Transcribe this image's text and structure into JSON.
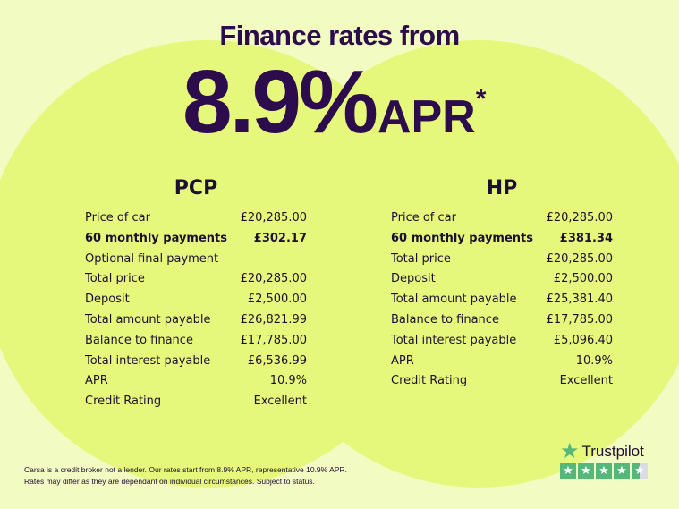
{
  "header": {
    "title": "Finance rates from",
    "rate": "8.9%",
    "rate_suffix": "APR",
    "asterisk": "*"
  },
  "colors": {
    "text": "#2d0c4e",
    "background": "#f1fbc2",
    "circle": "#e6f87c",
    "trustpilot_green": "#54b87a"
  },
  "pcp": {
    "title": "PCP",
    "rows": [
      {
        "label": "Price of car",
        "value": "£20,285.00"
      },
      {
        "label": "60 monthly payments",
        "value": "£302.17",
        "bold": true
      },
      {
        "label": "Optional final payment",
        "value": ""
      },
      {
        "label": "Total price",
        "value": "£20,285.00"
      },
      {
        "label": "Deposit",
        "value": "£2,500.00"
      },
      {
        "label": "Total amount payable",
        "value": "£26,821.99"
      },
      {
        "label": "Balance to finance",
        "value": "£17,785.00"
      },
      {
        "label": "Total interest payable",
        "value": "£6,536.99"
      },
      {
        "label": "APR",
        "value": "10.9%"
      },
      {
        "label": "Credit Rating",
        "value": "Excellent"
      }
    ]
  },
  "hp": {
    "title": "HP",
    "rows": [
      {
        "label": "Price of car",
        "value": "£20,285.00"
      },
      {
        "label": "60 monthly payments",
        "value": "£381.34",
        "bold": true
      },
      {
        "label": "Total price",
        "value": "£20,285.00"
      },
      {
        "label": "Deposit",
        "value": "£2,500.00"
      },
      {
        "label": "Total amount payable",
        "value": "£25,381.40"
      },
      {
        "label": "Balance to finance",
        "value": "£17,785.00"
      },
      {
        "label": "Total interest payable",
        "value": "£5,096.40"
      },
      {
        "label": "APR",
        "value": "10.9%"
      },
      {
        "label": "Credit Rating",
        "value": "Excellent"
      }
    ]
  },
  "disclaimer": {
    "line1": "Carsa is a credit broker not a lender. Our rates start from 8.9% APR, representative 10.9% APR.",
    "line2": "Rates may differ as they are dependant on individual circumstances. Subject to status."
  },
  "trustpilot": {
    "name": "Trustpilot",
    "icon": "star-icon",
    "rating": 4.5,
    "max": 5
  }
}
